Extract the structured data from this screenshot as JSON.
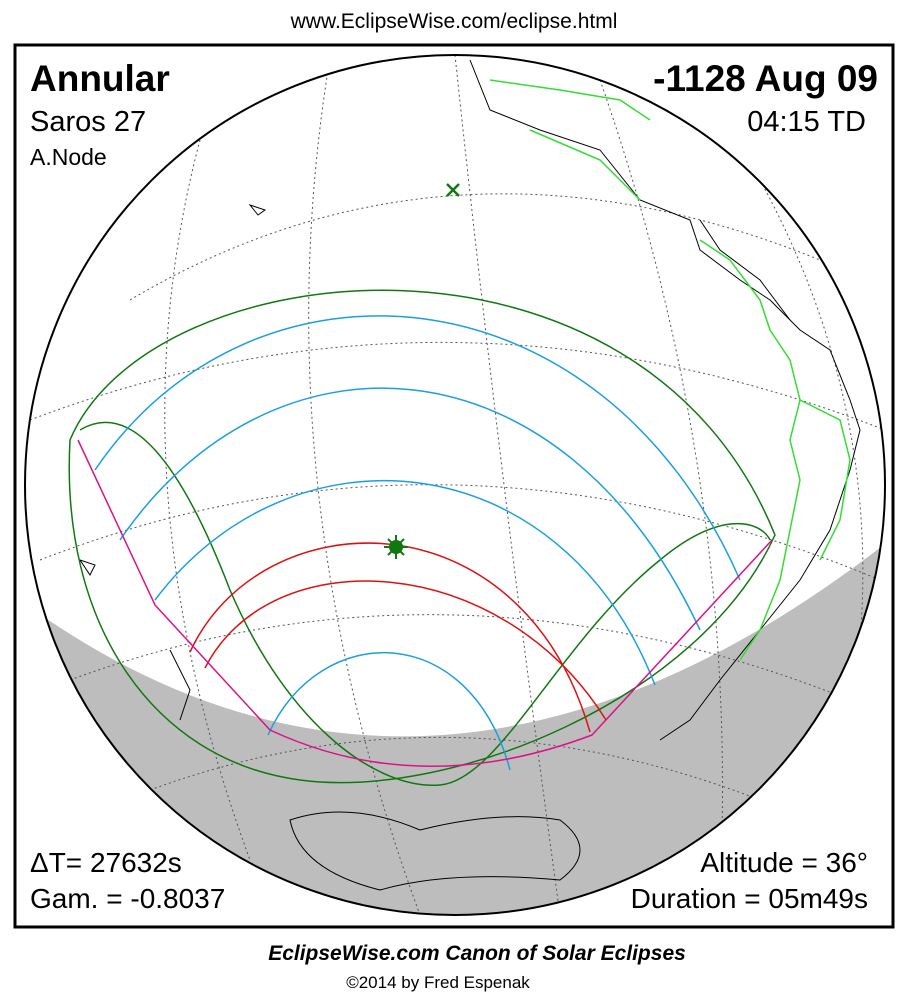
{
  "header": {
    "url": "www.EclipseWise.com/eclipse.html"
  },
  "panel": {
    "eclipse_type": "Annular",
    "saros": "Saros  27",
    "node": "A.Node",
    "date": "-1128 Aug 09",
    "time": "04:15 TD",
    "delta_t": "ΔT=  27632s",
    "gamma": "Gam. = -0.8037",
    "altitude": "Altitude = 36°",
    "duration": "Duration = 05m49s"
  },
  "footer": {
    "title": "EclipseWise.com Canon of Solar Eclipses",
    "credit": "©2014 by Fred Espenak"
  }
}
